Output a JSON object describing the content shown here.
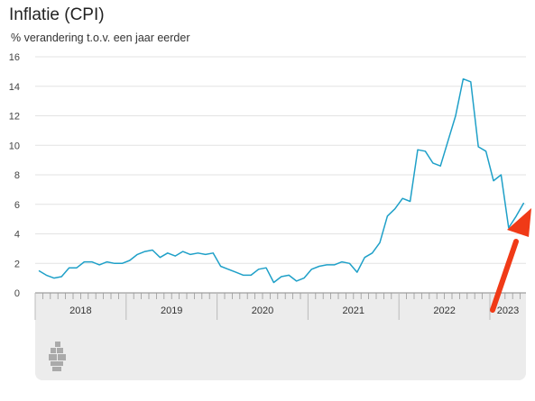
{
  "header": {
    "title": "Inflatie (CPI)",
    "subtitle": "% verandering t.o.v. een jaar eerder"
  },
  "colors": {
    "line": "#1fa0c8",
    "grid": "#e3e3e3",
    "arrow": "#f03a17",
    "axis_band": "#ececec"
  },
  "footer": {
    "logo_icon": "cbs-logo-icon"
  },
  "chart_data": {
    "type": "line",
    "title": "Inflatie (CPI)",
    "subtitle": "% verandering t.o.v. een jaar eerder",
    "xlabel": "",
    "ylabel": "",
    "ylim": [
      0,
      16
    ],
    "yticks": [
      0,
      2,
      4,
      6,
      8,
      10,
      12,
      14,
      16
    ],
    "grid": "horizontal",
    "x_tick_labels": [
      "2018",
      "2019",
      "2020",
      "2021",
      "2022",
      "2023"
    ],
    "series": [
      {
        "values": [
          1.5,
          1.2,
          1.0,
          1.1,
          1.7,
          1.7,
          2.1,
          2.1,
          1.9,
          2.1,
          2.0,
          2.0,
          2.2,
          2.6,
          2.8,
          2.9,
          2.4,
          2.7,
          2.5,
          2.8,
          2.6,
          2.7,
          2.6,
          2.7,
          1.8,
          1.6,
          1.4,
          1.2,
          1.2,
          1.6,
          1.7,
          0.7,
          1.1,
          1.2,
          0.8,
          1.0,
          1.6,
          1.8,
          1.9,
          1.9,
          2.1,
          2.0,
          1.4,
          2.4,
          2.7,
          3.4,
          5.2,
          5.7,
          6.4,
          6.2,
          9.7,
          9.6,
          8.8,
          8.6,
          10.3,
          12.0,
          14.5,
          14.3,
          9.9,
          9.6,
          7.6,
          8.0,
          4.4,
          5.2,
          6.1
        ]
      }
    ],
    "annotations": [
      "red arrow pointing to the latest value"
    ]
  }
}
